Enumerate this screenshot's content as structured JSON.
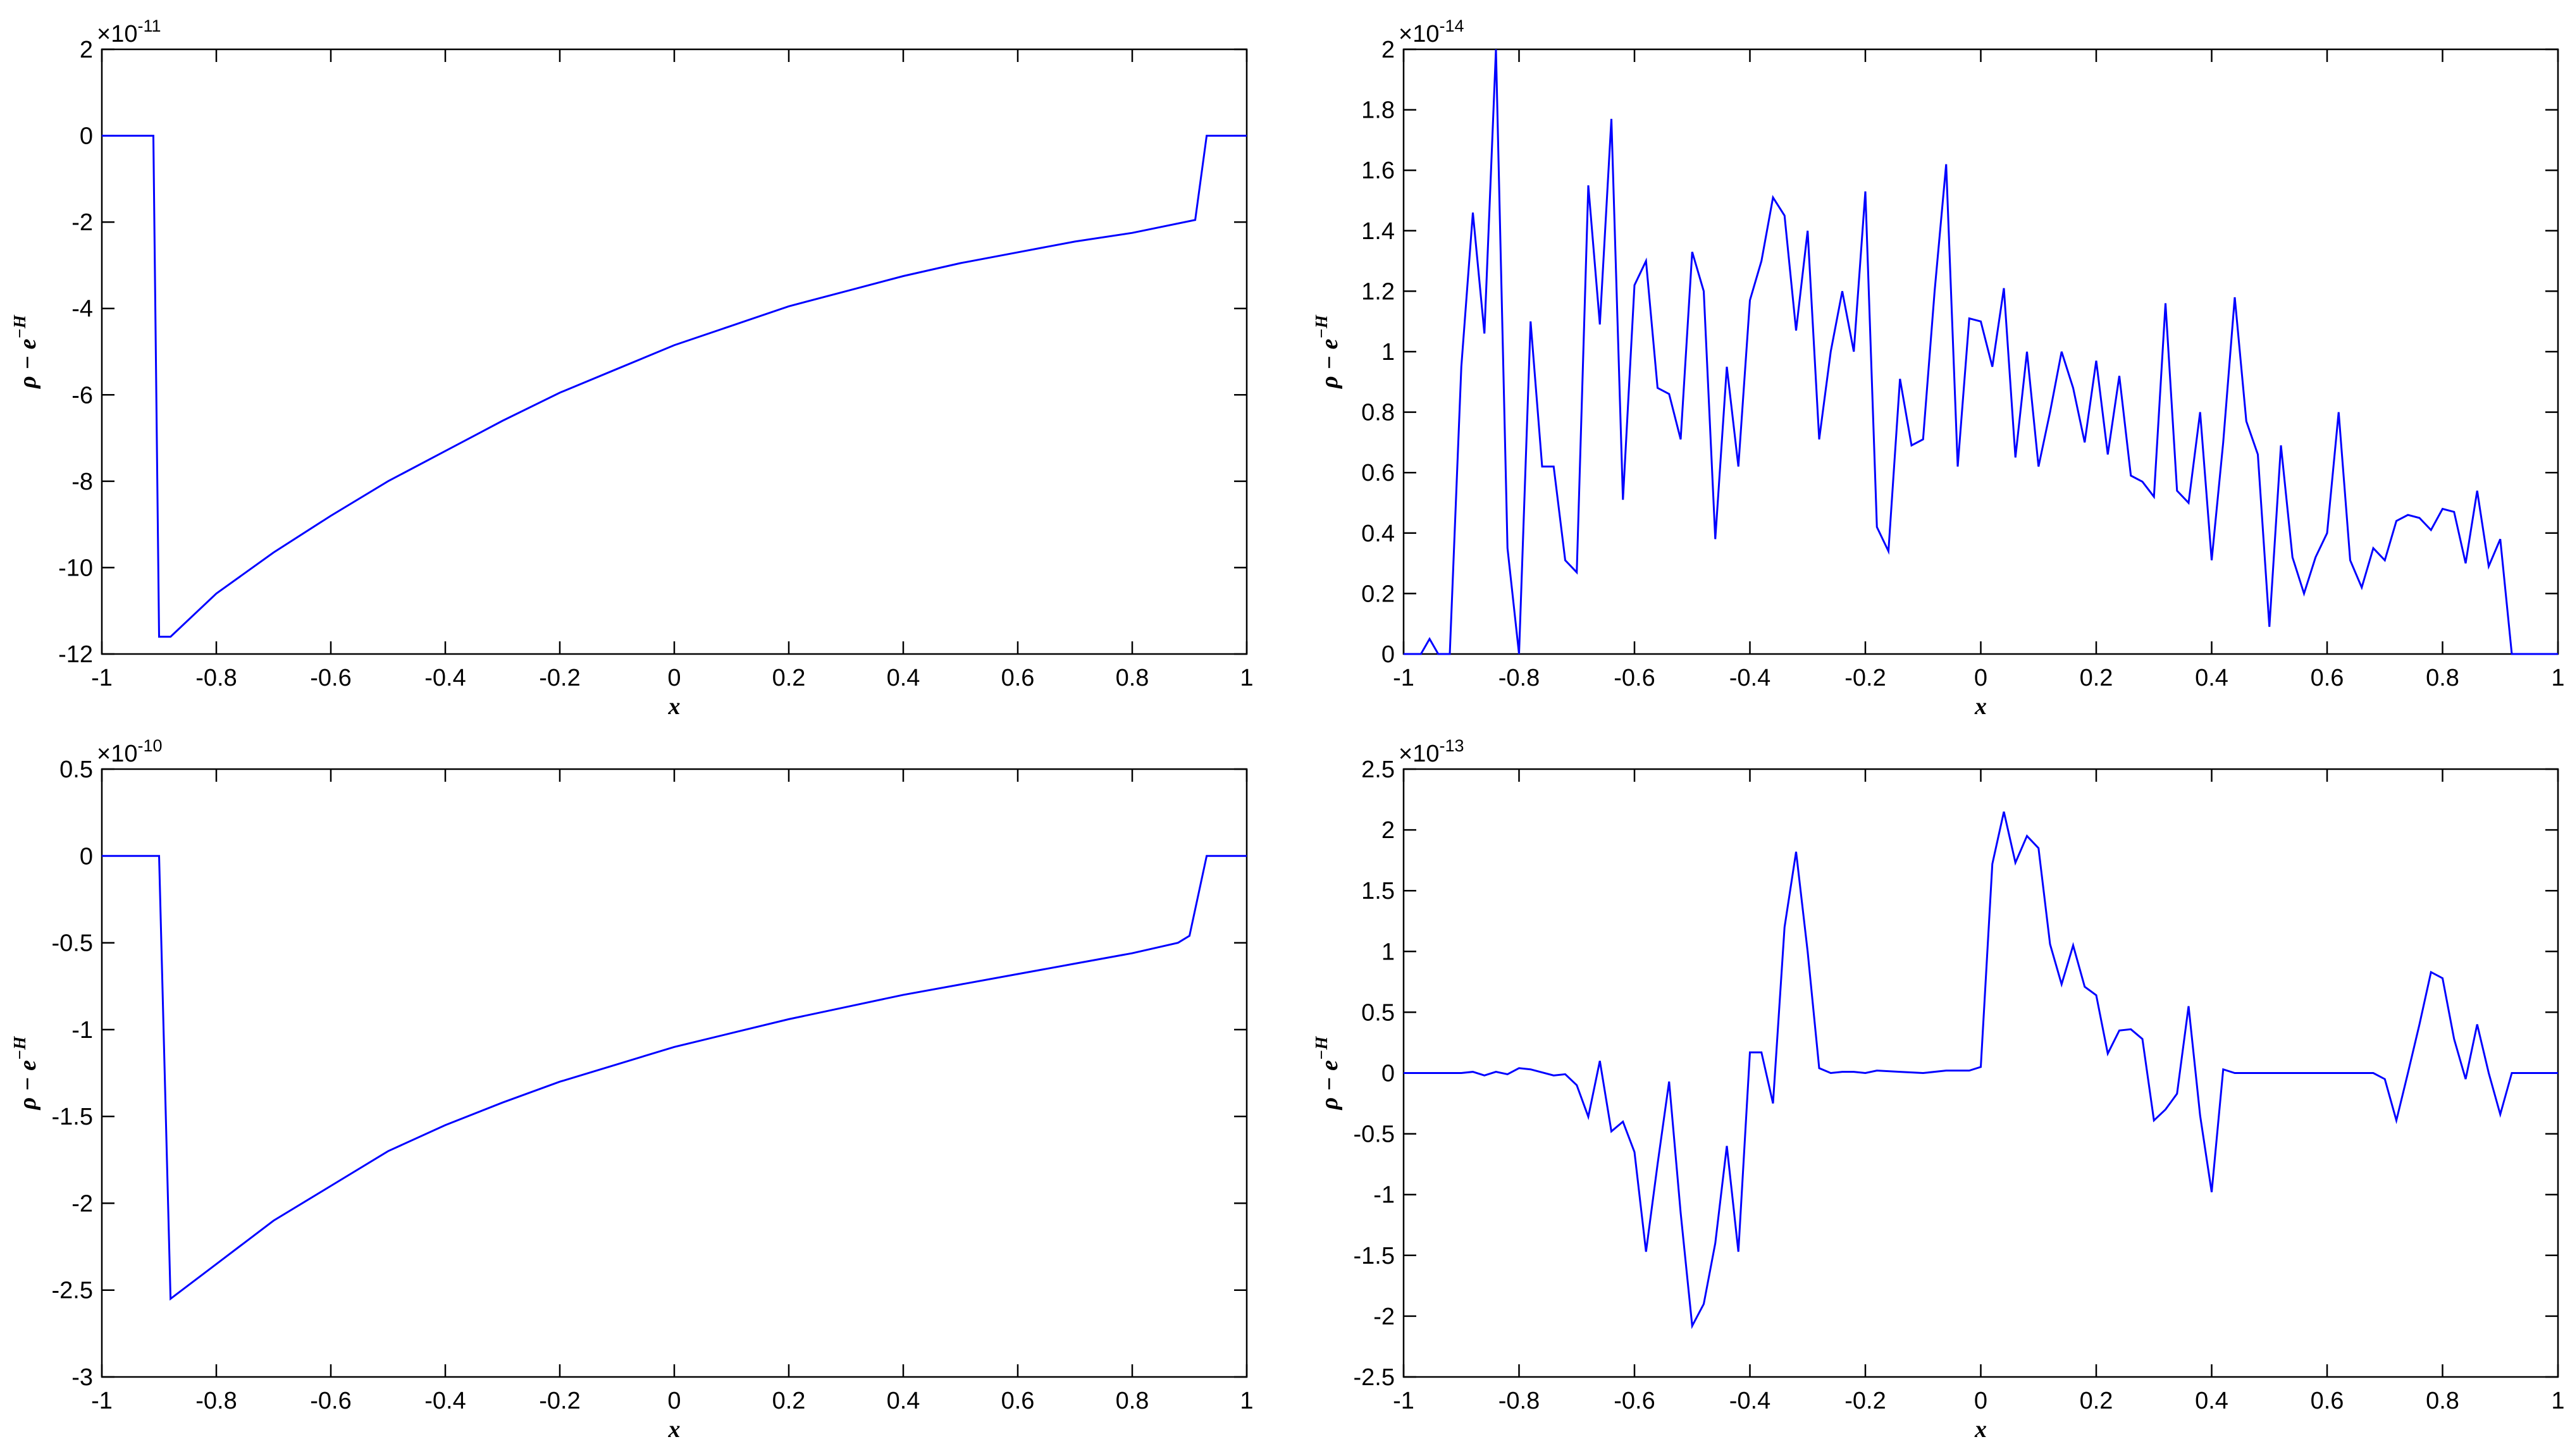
{
  "chart_data": [
    {
      "type": "line",
      "xlabel": "x",
      "ylabel": "ρ − e",
      "ylabel_sup": "−H",
      "multiplier": "×10",
      "multiplier_exp": "-11",
      "color": "#0000ff",
      "xlim": [
        -1,
        1
      ],
      "xticks": [
        -1,
        -0.8,
        -0.6,
        -0.4,
        -0.2,
        0,
        0.2,
        0.4,
        0.6,
        0.8,
        1
      ],
      "ylim": [
        -12,
        2
      ],
      "yticks": [
        -12,
        -10,
        -8,
        -6,
        -4,
        -2,
        0,
        2
      ],
      "x": [
        -1,
        -0.91,
        -0.9,
        -0.88,
        -0.8,
        -0.7,
        -0.6,
        -0.5,
        -0.4,
        -0.3,
        -0.2,
        -0.1,
        0,
        0.1,
        0.2,
        0.3,
        0.4,
        0.5,
        0.6,
        0.7,
        0.8,
        0.91,
        0.93,
        1
      ],
      "values": [
        0,
        0,
        -11.6,
        -11.6,
        -10.6,
        -9.65,
        -8.8,
        -8.0,
        -7.3,
        -6.6,
        -5.95,
        -5.4,
        -4.85,
        -4.4,
        -3.95,
        -3.6,
        -3.25,
        -2.95,
        -2.7,
        -2.45,
        -2.25,
        -1.95,
        0,
        0
      ]
    },
    {
      "type": "line",
      "xlabel": "x",
      "ylabel": "ρ − e",
      "ylabel_sup": "−H",
      "multiplier": "×10",
      "multiplier_exp": "-14",
      "color": "#0000ff",
      "xlim": [
        -1,
        1
      ],
      "xticks": [
        -1,
        -0.8,
        -0.6,
        -0.4,
        -0.2,
        0,
        0.2,
        0.4,
        0.6,
        0.8,
        1
      ],
      "ylim": [
        0,
        2
      ],
      "yticks": [
        0,
        0.2,
        0.4,
        0.6,
        0.8,
        1,
        1.2,
        1.4,
        1.6,
        1.8,
        2
      ],
      "x": [
        -1,
        -0.97,
        -0.955,
        -0.94,
        -0.92,
        -0.9,
        -0.88,
        -0.86,
        -0.84,
        -0.82,
        -0.8,
        -0.78,
        -0.76,
        -0.74,
        -0.72,
        -0.7,
        -0.68,
        -0.66,
        -0.64,
        -0.62,
        -0.6,
        -0.58,
        -0.56,
        -0.54,
        -0.52,
        -0.5,
        -0.48,
        -0.46,
        -0.44,
        -0.42,
        -0.4,
        -0.38,
        -0.36,
        -0.34,
        -0.32,
        -0.3,
        -0.28,
        -0.26,
        -0.24,
        -0.22,
        -0.2,
        -0.18,
        -0.16,
        -0.14,
        -0.12,
        -0.1,
        -0.08,
        -0.06,
        -0.04,
        -0.02,
        0,
        0.02,
        0.04,
        0.06,
        0.08,
        0.1,
        0.12,
        0.14,
        0.16,
        0.18,
        0.2,
        0.22,
        0.24,
        0.26,
        0.28,
        0.3,
        0.32,
        0.34,
        0.36,
        0.38,
        0.4,
        0.42,
        0.44,
        0.46,
        0.48,
        0.5,
        0.52,
        0.54,
        0.56,
        0.58,
        0.6,
        0.62,
        0.64,
        0.66,
        0.68,
        0.7,
        0.72,
        0.74,
        0.76,
        0.78,
        0.8,
        0.82,
        0.84,
        0.86,
        0.88,
        0.9,
        0.92,
        0.94,
        1
      ],
      "values": [
        0,
        0,
        0.05,
        0,
        0,
        0.95,
        1.46,
        1.06,
        2.0,
        0.35,
        0,
        1.1,
        0.62,
        0.62,
        0.31,
        0.27,
        1.55,
        1.09,
        1.77,
        0.51,
        1.22,
        1.3,
        0.88,
        0.86,
        0.71,
        1.33,
        1.2,
        0.38,
        0.95,
        0.62,
        1.17,
        1.3,
        1.51,
        1.45,
        1.07,
        1.4,
        0.71,
        1.0,
        1.2,
        1.0,
        1.53,
        0.42,
        0.34,
        0.91,
        0.69,
        0.71,
        1.2,
        1.62,
        0.62,
        1.11,
        1.1,
        0.95,
        1.21,
        0.65,
        1.0,
        0.62,
        0.8,
        1.0,
        0.88,
        0.7,
        0.97,
        0.66,
        0.92,
        0.59,
        0.57,
        0.52,
        1.16,
        0.54,
        0.5,
        0.8,
        0.31,
        0.7,
        1.18,
        0.77,
        0.66,
        0.09,
        0.69,
        0.32,
        0.2,
        0.32,
        0.4,
        0.8,
        0.31,
        0.22,
        0.35,
        0.31,
        0.44,
        0.46,
        0.45,
        0.41,
        0.48,
        0.47,
        0.3,
        0.54,
        0.29,
        0.38,
        0,
        0,
        0
      ]
    },
    {
      "type": "line",
      "xlabel": "x",
      "ylabel": "ρ − e",
      "ylabel_sup": "−H",
      "multiplier": "×10",
      "multiplier_exp": "-10",
      "color": "#0000ff",
      "xlim": [
        -1,
        1
      ],
      "xticks": [
        -1,
        -0.8,
        -0.6,
        -0.4,
        -0.2,
        0,
        0.2,
        0.4,
        0.6,
        0.8,
        1
      ],
      "ylim": [
        -3,
        0.5
      ],
      "yticks": [
        -3,
        -2.5,
        -2,
        -1.5,
        -1,
        -0.5,
        0,
        0.5
      ],
      "x": [
        -1,
        -0.9,
        -0.88,
        -0.8,
        -0.7,
        -0.6,
        -0.5,
        -0.4,
        -0.3,
        -0.2,
        -0.1,
        0,
        0.1,
        0.2,
        0.3,
        0.4,
        0.5,
        0.6,
        0.7,
        0.8,
        0.88,
        0.9,
        0.93,
        1
      ],
      "values": [
        0,
        0,
        -2.55,
        -2.35,
        -2.1,
        -1.9,
        -1.7,
        -1.55,
        -1.42,
        -1.3,
        -1.2,
        -1.1,
        -1.02,
        -0.94,
        -0.87,
        -0.8,
        -0.74,
        -0.68,
        -0.62,
        -0.56,
        -0.5,
        -0.46,
        0,
        0
      ]
    },
    {
      "type": "line",
      "xlabel": "x",
      "ylabel": "ρ − e",
      "ylabel_sup": "−H",
      "multiplier": "×10",
      "multiplier_exp": "-13",
      "color": "#0000ff",
      "xlim": [
        -1,
        1
      ],
      "xticks": [
        -1,
        -0.8,
        -0.6,
        -0.4,
        -0.2,
        0,
        0.2,
        0.4,
        0.6,
        0.8,
        1
      ],
      "ylim": [
        -2.5,
        2.5
      ],
      "yticks": [
        -2.5,
        -2,
        -1.5,
        -1,
        -0.5,
        0,
        0.5,
        1,
        1.5,
        2,
        2.5
      ],
      "x": [
        -1,
        -0.9,
        -0.88,
        -0.86,
        -0.84,
        -0.82,
        -0.8,
        -0.78,
        -0.74,
        -0.72,
        -0.7,
        -0.68,
        -0.66,
        -0.64,
        -0.62,
        -0.6,
        -0.58,
        -0.56,
        -0.54,
        -0.52,
        -0.5,
        -0.48,
        -0.46,
        -0.44,
        -0.42,
        -0.4,
        -0.38,
        -0.36,
        -0.34,
        -0.32,
        -0.3,
        -0.28,
        -0.26,
        -0.24,
        -0.22,
        -0.2,
        -0.18,
        -0.14,
        -0.1,
        -0.06,
        -0.02,
        0,
        0.02,
        0.04,
        0.06,
        0.08,
        0.1,
        0.12,
        0.14,
        0.16,
        0.18,
        0.2,
        0.22,
        0.24,
        0.26,
        0.28,
        0.3,
        0.32,
        0.34,
        0.36,
        0.38,
        0.4,
        0.42,
        0.44,
        0.46,
        0.5,
        0.6,
        0.68,
        0.7,
        0.72,
        0.74,
        0.76,
        0.78,
        0.8,
        0.82,
        0.84,
        0.86,
        0.88,
        0.9,
        0.92,
        1
      ],
      "values": [
        0,
        0,
        0.01,
        -0.02,
        0.01,
        -0.01,
        0.04,
        0.03,
        -0.02,
        -0.01,
        -0.1,
        -0.36,
        0.1,
        -0.48,
        -0.4,
        -0.65,
        -1.47,
        -0.75,
        -0.07,
        -1.15,
        -2.08,
        -1.9,
        -1.4,
        -0.6,
        -1.47,
        0.17,
        0.17,
        -0.25,
        1.2,
        1.82,
        1.0,
        0.04,
        0,
        0.01,
        0.01,
        0,
        0.02,
        0.01,
        0,
        0.02,
        0.02,
        0.05,
        1.72,
        2.15,
        1.73,
        1.95,
        1.85,
        1.06,
        0.73,
        1.05,
        0.71,
        0.64,
        0.16,
        0.35,
        0.36,
        0.28,
        -0.39,
        -0.3,
        -0.17,
        0.55,
        -0.35,
        -0.98,
        0.03,
        0,
        0,
        0,
        0,
        0,
        -0.05,
        -0.39,
        0,
        0.4,
        0.83,
        0.78,
        0.28,
        -0.05,
        0.4,
        0,
        -0.34,
        0,
        0
      ]
    }
  ]
}
